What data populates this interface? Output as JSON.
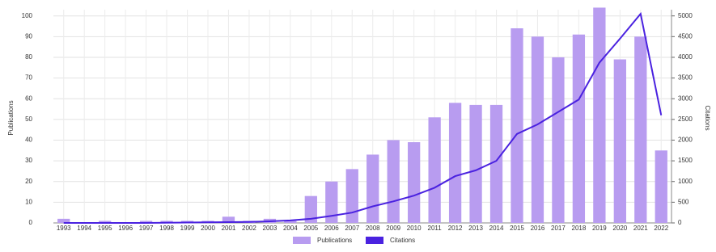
{
  "chart_data": {
    "type": "bar_line",
    "categories": [
      "1993",
      "1994",
      "1995",
      "1996",
      "1997",
      "1998",
      "1999",
      "2000",
      "2001",
      "2002",
      "2003",
      "2004",
      "2005",
      "2006",
      "2007",
      "2008",
      "2009",
      "2010",
      "2011",
      "2012",
      "2013",
      "2014",
      "2015",
      "2016",
      "2017",
      "2018",
      "2019",
      "2020",
      "2021",
      "2022"
    ],
    "series": [
      {
        "name": "Publications",
        "color": "#b89cf0",
        "kind": "bar",
        "values": [
          2,
          0,
          1,
          0,
          1,
          1,
          1,
          1,
          3,
          1,
          2,
          1,
          13,
          20,
          26,
          33,
          40,
          39,
          51,
          58,
          57,
          57,
          94,
          90,
          80,
          91,
          104,
          79,
          90,
          35
        ]
      },
      {
        "name": "Citations",
        "color": "#4a22e0",
        "kind": "line",
        "axis": "y2",
        "values": [
          0,
          0,
          0,
          0,
          0,
          5,
          10,
          15,
          20,
          25,
          40,
          60,
          100,
          170,
          250,
          400,
          520,
          660,
          850,
          1130,
          1270,
          1500,
          2150,
          2380,
          2680,
          2980,
          3870,
          4450,
          5050,
          2600
        ]
      }
    ],
    "ylabel": "Publications",
    "y2label": "Citations",
    "ylim": [
      0,
      103
    ],
    "yticks": [
      0,
      10,
      20,
      30,
      40,
      50,
      60,
      70,
      80,
      90,
      100
    ],
    "y2lim": [
      0,
      5150
    ],
    "y2ticks": [
      0,
      500,
      1000,
      1500,
      2000,
      2500,
      3000,
      3500,
      4000,
      4500,
      5000
    ],
    "grid": true
  }
}
